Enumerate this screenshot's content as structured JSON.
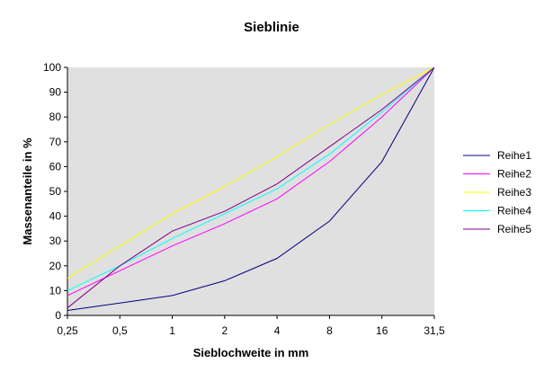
{
  "chart_data": {
    "type": "line",
    "title": "Sieblinie",
    "xlabel": "Sieblochweite in mm",
    "ylabel": "Massenanteile in %",
    "categories": [
      "0,25",
      "0,5",
      "1",
      "2",
      "4",
      "8",
      "16",
      "31,5"
    ],
    "ylim": [
      0,
      100
    ],
    "yticks": [
      0,
      10,
      20,
      30,
      40,
      50,
      60,
      70,
      80,
      90,
      100
    ],
    "grid": false,
    "legend_position": "right",
    "plot_background": "#e0e0e0",
    "series": [
      {
        "name": "Reihe1",
        "color": "#000080",
        "values": [
          2,
          5,
          8,
          14,
          23,
          38,
          62,
          100
        ]
      },
      {
        "name": "Reihe2",
        "color": "#ff00ff",
        "values": [
          8,
          18,
          28,
          37,
          47,
          62,
          80,
          100
        ]
      },
      {
        "name": "Reihe3",
        "color": "#ffff00",
        "values": [
          15,
          28,
          41,
          52,
          64,
          77,
          89,
          100
        ]
      },
      {
        "name": "Reihe4",
        "color": "#00ffff",
        "values": [
          10,
          20,
          31,
          41,
          51,
          65,
          82,
          100
        ]
      },
      {
        "name": "Reihe5",
        "color": "#800080",
        "values": [
          3,
          20,
          34,
          42,
          53,
          68,
          83,
          100
        ]
      }
    ]
  }
}
